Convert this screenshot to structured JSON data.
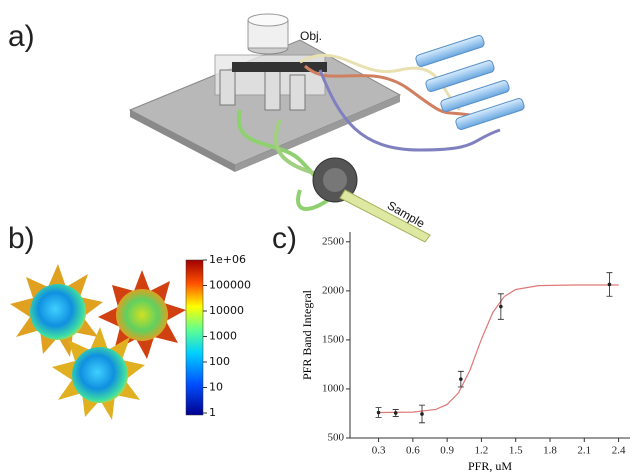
{
  "panel_labels": [
    "a)",
    "b)",
    "c)"
  ],
  "illustration": {
    "objective_label": "Obj.",
    "sample_label": "Sample"
  },
  "colorbar": {
    "scale": "log",
    "lim": [
      1,
      1000000
    ],
    "ticks": [
      {
        "value": 1000000,
        "label": "1e+06"
      },
      100000,
      10000,
      1000,
      100,
      10,
      1
    ]
  },
  "chart_data": {
    "type": "scatter",
    "x_label": "PFR, uM",
    "y_label": "PFR Band Integral",
    "xlim": [
      0.05,
      2.5
    ],
    "ylim": [
      500,
      2600
    ],
    "xticks": [
      0.3,
      0.6,
      0.9,
      1.2,
      1.5,
      1.8,
      2.1,
      2.4
    ],
    "yticks": [
      500,
      1000,
      1500,
      2000,
      2500
    ],
    "series": [
      {
        "kind": "points",
        "color": "#222222",
        "x": [
          0.3,
          0.45,
          0.68,
          1.02,
          1.37,
          2.32
        ],
        "values": [
          760,
          755,
          745,
          1100,
          1840,
          2065
        ],
        "errors": [
          50,
          35,
          90,
          80,
          130,
          120
        ]
      },
      {
        "kind": "fit",
        "color": "#e07878",
        "x": [
          0.3,
          0.6,
          0.8,
          0.9,
          1.0,
          1.1,
          1.2,
          1.3,
          1.4,
          1.5,
          1.7,
          2.0,
          2.4
        ],
        "values": [
          760,
          764,
          791,
          842,
          961,
          1192,
          1507,
          1781,
          1942,
          2014,
          2053,
          2060,
          2060
        ]
      }
    ]
  }
}
